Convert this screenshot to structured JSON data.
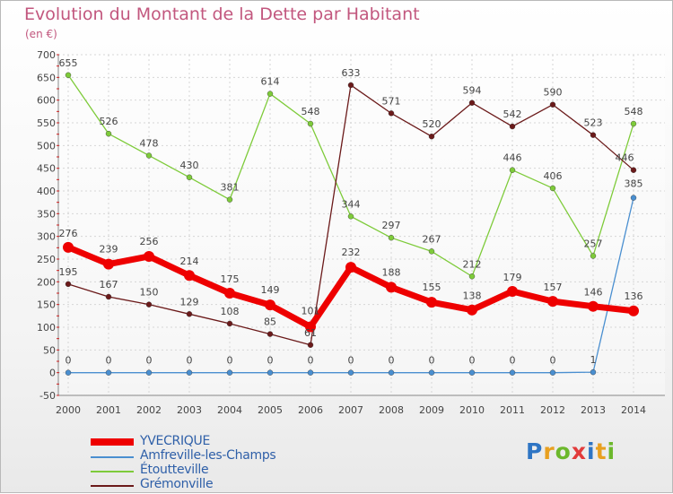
{
  "header": {
    "title": "Evolution du Montant de la Dette par Habitant",
    "unit": "(en €)"
  },
  "brand": {
    "text": "Proxiti",
    "colors": [
      "#2e75c4",
      "#e8a020",
      "#6cb82c",
      "#e23b3b",
      "#2e75c4",
      "#e8a020",
      "#6cb82c"
    ]
  },
  "chart_data": {
    "type": "line",
    "title": "Evolution du Montant de la Dette par Habitant",
    "ylabel": "(en €)",
    "xlabel": "",
    "x": [
      "2000",
      "2001",
      "2002",
      "2003",
      "2004",
      "2005",
      "2006",
      "2007",
      "2008",
      "2009",
      "2010",
      "2011",
      "2012",
      "2013",
      "2014"
    ],
    "yticks": [
      -50,
      0,
      50,
      100,
      150,
      200,
      250,
      300,
      350,
      400,
      450,
      500,
      550,
      600,
      650,
      700
    ],
    "ylim": [
      -50,
      700
    ],
    "grid": true,
    "legend_position": "bottom-left",
    "series": [
      {
        "name": "YVECRIQUE",
        "color": "#ee0000",
        "values": [
          276,
          239,
          256,
          214,
          175,
          149,
          101,
          232,
          188,
          155,
          138,
          179,
          157,
          146,
          136
        ],
        "labels": [
          "276",
          "239",
          "256",
          "214",
          "175",
          "149",
          "101",
          "232",
          "188",
          "155",
          "138",
          "179",
          "157",
          "146",
          "136"
        ]
      },
      {
        "name": "Amfreville-les-Champs",
        "color": "#4a8fd0",
        "values": [
          0,
          0,
          0,
          0,
          0,
          0,
          0,
          0,
          0,
          0,
          0,
          0,
          0,
          1,
          385
        ],
        "labels": [
          "0",
          "0",
          "0",
          "0",
          "0",
          "0",
          "0",
          "0",
          "0",
          "0",
          "0",
          "0",
          "0",
          "1",
          "385"
        ]
      },
      {
        "name": "Étoutteville",
        "color": "#7ecb3a",
        "values": [
          655,
          526,
          478,
          430,
          381,
          614,
          548,
          344,
          297,
          267,
          212,
          446,
          406,
          257,
          548
        ],
        "labels": [
          "655",
          "526",
          "478",
          "430",
          "381",
          "614",
          "548",
          "344",
          "297",
          "267",
          "212",
          "446",
          "406",
          "257",
          "548"
        ]
      },
      {
        "name": "Grémonville",
        "color": "#6b1a1a",
        "values": [
          195,
          167,
          150,
          129,
          108,
          85,
          61,
          633,
          571,
          520,
          594,
          542,
          590,
          523,
          446
        ],
        "labels": [
          "195",
          "167",
          "150",
          "129",
          "108",
          "85",
          "61",
          "633",
          "571",
          "520",
          "594",
          "542",
          "590",
          "523",
          "446"
        ]
      }
    ]
  }
}
